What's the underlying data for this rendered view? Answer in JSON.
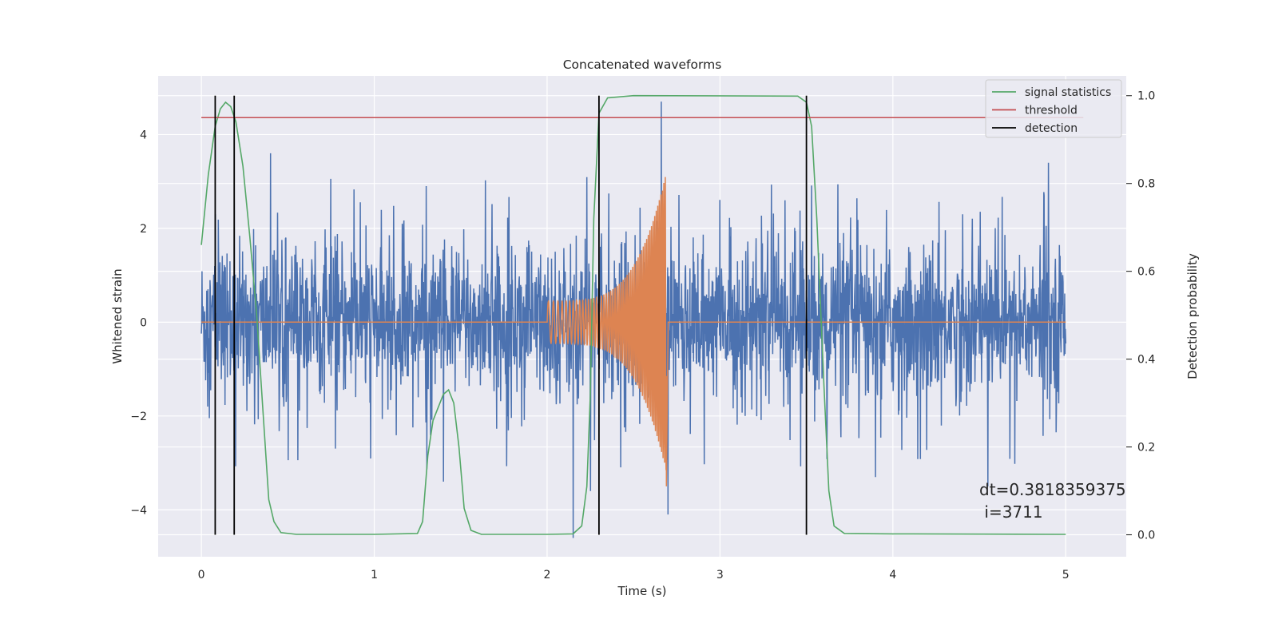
{
  "chart_data": {
    "type": "line",
    "title": "Concatenated waveforms",
    "xlabel": "Time (s)",
    "ylabel": "Whitened strain",
    "ylabel_right": "Detection probability",
    "xlim": [
      -0.25,
      5.35
    ],
    "ylim": [
      -5.0,
      5.25
    ],
    "ylim_right": [
      -0.05,
      1.045
    ],
    "xticks": [
      0,
      1,
      2,
      3,
      4,
      5
    ],
    "yticks": [
      -4,
      -2,
      0,
      2,
      4
    ],
    "yticks_right": [
      0.0,
      0.2,
      0.4,
      0.6,
      0.8,
      1.0
    ],
    "xtick_labels": [
      "0",
      "1",
      "2",
      "3",
      "4",
      "5"
    ],
    "ytick_labels": [
      "−4",
      "−2",
      "0",
      "2",
      "4"
    ],
    "ytick_right_labels": [
      "0.0",
      "0.2",
      "0.4",
      "0.6",
      "0.8",
      "1.0"
    ],
    "grid": true,
    "legend_position": "top-right",
    "series": [
      {
        "axis": "left",
        "color": "#4c72b0",
        "description": "whitened strain noise, roughly ±1 band with spikes up to ±4",
        "x_range": [
          0,
          5
        ],
        "peaks": [
          {
            "x": 0.08,
            "y": 2.3
          },
          {
            "x": 0.19,
            "y": 2.6
          },
          {
            "x": 0.4,
            "y": 3.6
          },
          {
            "x": 1.3,
            "y": 2.9
          },
          {
            "x": 1.4,
            "y": -3.4
          },
          {
            "x": 2.15,
            "y": -4.6
          },
          {
            "x": 2.25,
            "y": -3.6
          },
          {
            "x": 2.66,
            "y": 4.7
          },
          {
            "x": 2.7,
            "y": -4.1
          },
          {
            "x": 3.9,
            "y": -3.3
          },
          {
            "x": 4.55,
            "y": -3.5
          },
          {
            "x": 4.9,
            "y": 3.4
          }
        ]
      },
      {
        "axis": "left",
        "color": "#dd8452",
        "description": "injected chirp signal, zero outside 2.0–2.69 s",
        "chirp": {
          "start": 2.0,
          "end": 2.69,
          "amp_start": 0.45,
          "amp_peak": 3.2,
          "end_value": -3.5
        }
      },
      {
        "axis": "right",
        "name": "signal statistics",
        "color": "#55a868",
        "points": [
          [
            0.0,
            0.66
          ],
          [
            0.04,
            0.82
          ],
          [
            0.08,
            0.93
          ],
          [
            0.11,
            0.97
          ],
          [
            0.14,
            0.985
          ],
          [
            0.17,
            0.975
          ],
          [
            0.2,
            0.94
          ],
          [
            0.24,
            0.84
          ],
          [
            0.28,
            0.68
          ],
          [
            0.32,
            0.5
          ],
          [
            0.36,
            0.26
          ],
          [
            0.39,
            0.08
          ],
          [
            0.42,
            0.03
          ],
          [
            0.46,
            0.005
          ],
          [
            0.55,
            0.001
          ],
          [
            1.0,
            0.001
          ],
          [
            1.25,
            0.003
          ],
          [
            1.28,
            0.03
          ],
          [
            1.31,
            0.18
          ],
          [
            1.34,
            0.26
          ],
          [
            1.37,
            0.29
          ],
          [
            1.4,
            0.32
          ],
          [
            1.43,
            0.33
          ],
          [
            1.46,
            0.3
          ],
          [
            1.49,
            0.2
          ],
          [
            1.52,
            0.06
          ],
          [
            1.56,
            0.01
          ],
          [
            1.62,
            0.001
          ],
          [
            2.0,
            0.001
          ],
          [
            2.15,
            0.002
          ],
          [
            2.2,
            0.02
          ],
          [
            2.23,
            0.11
          ],
          [
            2.25,
            0.32
          ],
          [
            2.27,
            0.72
          ],
          [
            2.3,
            0.96
          ],
          [
            2.35,
            0.995
          ],
          [
            2.5,
            1.0
          ],
          [
            3.45,
            0.999
          ],
          [
            3.5,
            0.985
          ],
          [
            3.53,
            0.93
          ],
          [
            3.56,
            0.72
          ],
          [
            3.6,
            0.35
          ],
          [
            3.63,
            0.1
          ],
          [
            3.66,
            0.02
          ],
          [
            3.72,
            0.003
          ],
          [
            4.0,
            0.002
          ],
          [
            5.0,
            0.001
          ]
        ]
      },
      {
        "axis": "right",
        "name": "threshold",
        "color": "#c44e52",
        "value": 0.95,
        "x_range": [
          0,
          5
        ]
      },
      {
        "axis": "right",
        "name": "detection",
        "color": "#000000",
        "x": [
          0.08,
          0.19,
          2.3,
          3.5
        ],
        "y_range": [
          0.0,
          1.0
        ]
      }
    ],
    "annotation": {
      "line1": "dt=0.3818359375",
      "line2": " i=3711",
      "x": 4.5,
      "y_right": 0.09
    }
  }
}
